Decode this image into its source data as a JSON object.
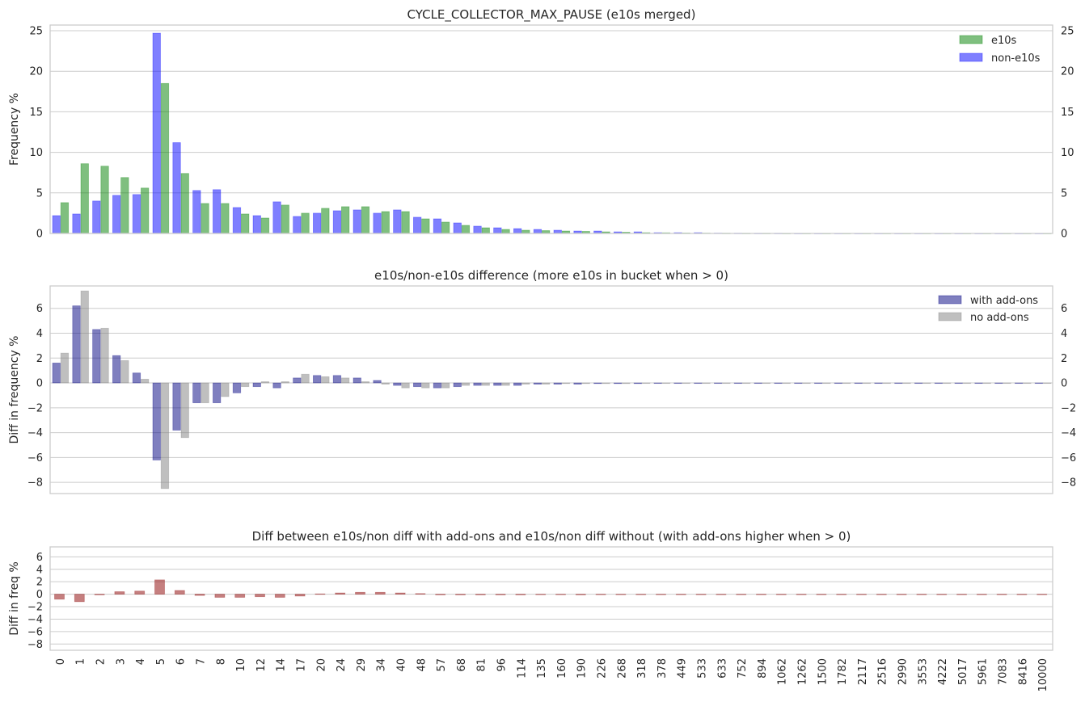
{
  "chart_data": [
    {
      "type": "bar",
      "title": "CYCLE_COLLECTOR_MAX_PAUSE (e10s merged)",
      "xlabel": "",
      "ylabel": "Frequency %",
      "ylim": [
        0,
        25.7
      ],
      "yticks": [
        0,
        5,
        10,
        15,
        20,
        25
      ],
      "right_axis_ticks": true,
      "grid": true,
      "legend_position": "top-right",
      "categories": [
        "0",
        "1",
        "2",
        "3",
        "4",
        "5",
        "6",
        "7",
        "8",
        "10",
        "12",
        "14",
        "17",
        "20",
        "24",
        "29",
        "34",
        "40",
        "48",
        "57",
        "68",
        "81",
        "96",
        "114",
        "135",
        "160",
        "190",
        "226",
        "268",
        "318",
        "378",
        "449",
        "533",
        "633",
        "752",
        "894",
        "1062",
        "1262",
        "1500",
        "1782",
        "2117",
        "2516",
        "2990",
        "3553",
        "4222",
        "5017",
        "5961",
        "7083",
        "8416",
        "10000"
      ],
      "series": [
        {
          "name": "non-e10s",
          "color": "#0000ff",
          "values": [
            2.2,
            2.4,
            4.0,
            4.7,
            4.8,
            24.7,
            11.2,
            5.3,
            5.4,
            3.2,
            2.2,
            3.9,
            2.1,
            2.5,
            2.8,
            2.9,
            2.5,
            2.9,
            2.0,
            1.8,
            1.3,
            0.9,
            0.7,
            0.6,
            0.5,
            0.4,
            0.3,
            0.3,
            0.2,
            0.2,
            0.1,
            0.1,
            0.1,
            0.05,
            0.03,
            0.02,
            0.02,
            0.01,
            0.01,
            0.01,
            0.01,
            0.01,
            0.01,
            0.01,
            0.01,
            0.01,
            0.01,
            0.01,
            0.01,
            0.01
          ]
        },
        {
          "name": "e10s",
          "color": "#008000",
          "values": [
            3.8,
            8.6,
            8.3,
            6.9,
            5.6,
            18.5,
            7.4,
            3.7,
            3.7,
            2.4,
            1.9,
            3.5,
            2.5,
            3.1,
            3.3,
            3.3,
            2.7,
            2.7,
            1.8,
            1.4,
            1.0,
            0.7,
            0.5,
            0.4,
            0.35,
            0.3,
            0.25,
            0.2,
            0.15,
            0.1,
            0.08,
            0.06,
            0.05,
            0.03,
            0.02,
            0.02,
            0.01,
            0.01,
            0.01,
            0.01,
            0.01,
            0.01,
            0.01,
            0.01,
            0.01,
            0.01,
            0.01,
            0.01,
            0.01,
            0.01
          ]
        }
      ]
    },
    {
      "type": "bar",
      "title": "e10s/non-e10s difference (more e10s in bucket when > 0)",
      "xlabel": "",
      "ylabel": "Diff in frequency %",
      "ylim": [
        -8.9,
        7.8
      ],
      "yticks": [
        -8,
        -6,
        -4,
        -2,
        0,
        2,
        4,
        6
      ],
      "right_axis_ticks": true,
      "grid": true,
      "legend_position": "top-right",
      "categories": [
        "0",
        "1",
        "2",
        "3",
        "4",
        "5",
        "6",
        "7",
        "8",
        "10",
        "12",
        "14",
        "17",
        "20",
        "24",
        "29",
        "34",
        "40",
        "48",
        "57",
        "68",
        "81",
        "96",
        "114",
        "135",
        "160",
        "190",
        "226",
        "268",
        "318",
        "378",
        "449",
        "533",
        "633",
        "752",
        "894",
        "1062",
        "1262",
        "1500",
        "1782",
        "2117",
        "2516",
        "2990",
        "3553",
        "4222",
        "5017",
        "5961",
        "7083",
        "8416",
        "10000"
      ],
      "series": [
        {
          "name": "with add-ons",
          "color": "#000080",
          "values": [
            1.6,
            6.2,
            4.3,
            2.2,
            0.8,
            -6.2,
            -3.8,
            -1.6,
            -1.6,
            -0.8,
            -0.3,
            -0.4,
            0.4,
            0.6,
            0.6,
            0.4,
            0.2,
            -0.2,
            -0.3,
            -0.4,
            -0.3,
            -0.2,
            -0.2,
            -0.2,
            -0.1,
            -0.1,
            -0.1,
            -0.05,
            -0.05,
            -0.05,
            -0.03,
            -0.02,
            -0.02,
            -0.01,
            -0.01,
            -0.01,
            -0.01,
            -0.01,
            -0.01,
            -0.01,
            -0.01,
            -0.01,
            -0.01,
            -0.01,
            -0.01,
            -0.01,
            -0.01,
            -0.01,
            -0.01,
            -0.01
          ]
        },
        {
          "name": "no add-ons",
          "color": "#808080",
          "values": [
            2.4,
            7.4,
            4.4,
            1.8,
            0.3,
            -8.5,
            -4.4,
            -1.6,
            -1.1,
            -0.3,
            0.1,
            0.1,
            0.7,
            0.5,
            0.4,
            0.1,
            -0.1,
            -0.4,
            -0.4,
            -0.4,
            -0.2,
            -0.2,
            -0.2,
            -0.1,
            -0.1,
            -0.05,
            -0.05,
            -0.05,
            -0.05,
            -0.03,
            -0.03,
            -0.02,
            -0.02,
            -0.01,
            -0.01,
            -0.01,
            -0.01,
            -0.01,
            -0.01,
            -0.01,
            -0.01,
            -0.01,
            -0.01,
            -0.01,
            -0.01,
            -0.01,
            -0.01,
            -0.01,
            -0.01,
            -0.01
          ]
        }
      ]
    },
    {
      "type": "bar",
      "title": "Diff between e10s/non diff with add-ons and e10s/non diff without (with add-ons higher when > 0)",
      "xlabel": "",
      "ylabel": "Diff in freq %",
      "ylim": [
        -9.0,
        7.6
      ],
      "yticks": [
        -8,
        -6,
        -4,
        -2,
        0,
        2,
        4,
        6
      ],
      "right_axis_ticks": false,
      "grid": true,
      "show_xtick_labels": true,
      "categories": [
        "0",
        "1",
        "2",
        "3",
        "4",
        "5",
        "6",
        "7",
        "8",
        "10",
        "12",
        "14",
        "17",
        "20",
        "24",
        "29",
        "34",
        "40",
        "48",
        "57",
        "68",
        "81",
        "96",
        "114",
        "135",
        "160",
        "190",
        "226",
        "268",
        "318",
        "378",
        "449",
        "533",
        "633",
        "752",
        "894",
        "1062",
        "1262",
        "1500",
        "1782",
        "2117",
        "2516",
        "2990",
        "3553",
        "4222",
        "5017",
        "5961",
        "7083",
        "8416",
        "10000"
      ],
      "series": [
        {
          "name": "",
          "color": "#8b0000",
          "values": [
            -0.8,
            -1.2,
            -0.1,
            0.4,
            0.5,
            2.3,
            0.6,
            -0.2,
            -0.5,
            -0.5,
            -0.4,
            -0.5,
            -0.3,
            0.05,
            0.2,
            0.3,
            0.3,
            0.2,
            0.1,
            -0.1,
            -0.1,
            -0.1,
            -0.1,
            -0.1,
            -0.05,
            -0.05,
            -0.1,
            -0.05,
            -0.05,
            -0.02,
            -0.02,
            -0.01,
            -0.01,
            -0.01,
            -0.01,
            -0.01,
            -0.01,
            -0.01,
            -0.01,
            -0.01,
            -0.01,
            -0.01,
            -0.01,
            -0.01,
            -0.01,
            -0.01,
            -0.01,
            -0.01,
            -0.01,
            -0.01
          ]
        }
      ]
    }
  ]
}
